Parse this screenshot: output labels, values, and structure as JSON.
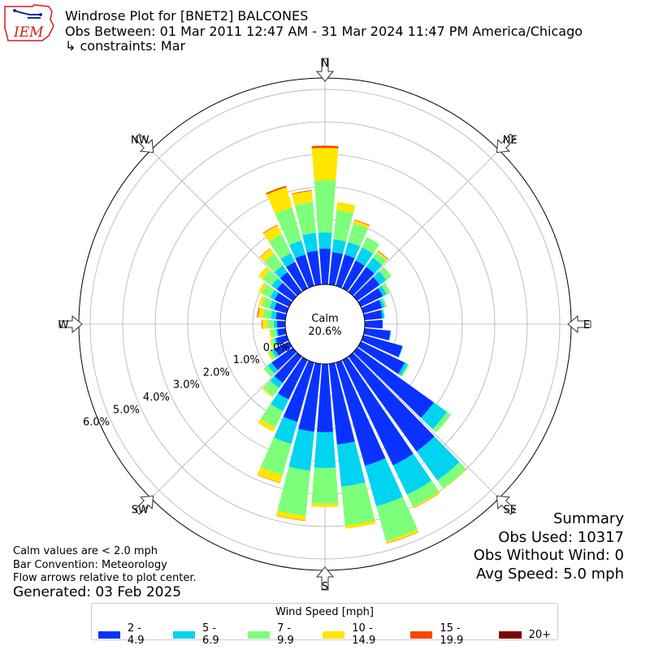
{
  "header": {
    "title": "Windrose Plot for [BNET2] BALCONES",
    "obs_between": "Obs Between: 01 Mar 2011 12:47 AM - 31 Mar 2024 11:47 PM America/Chicago",
    "constraints": "↳ constraints: Mar"
  },
  "logo": {
    "text": "IEM"
  },
  "summary": {
    "title": "Summary",
    "obs_used": "Obs Used: 10317",
    "obs_without_wind": "Obs Without Wind: 0",
    "avg_speed": "Avg Speed: 5.0 mph"
  },
  "notes": {
    "calm": "Calm values are < 2.0 mph",
    "convention": "Bar Convention: Meteorology",
    "flow": "Flow arrows relative to plot center.",
    "generated": "Generated: 03 Feb 2025"
  },
  "chart_data": {
    "type": "windrose",
    "calm_label": "Calm",
    "calm_value": "20.6%",
    "directions": [
      "N",
      "NE",
      "E",
      "SE",
      "S",
      "SW",
      "W",
      "NW"
    ],
    "radial_ticks": [
      "0.0%",
      "1.0%",
      "2.0%",
      "3.0%",
      "4.0%",
      "5.0%",
      "6.0%"
    ],
    "legend_title": "Wind Speed [mph]",
    "bins": [
      {
        "label": "2 - 4.9",
        "color": "#0a32ff"
      },
      {
        "label": "5 - 6.9",
        "color": "#00d4f0"
      },
      {
        "label": "7 - 9.9",
        "color": "#7dff7a"
      },
      {
        "label": "10 - 14.9",
        "color": "#ffe600"
      },
      {
        "label": "15 - 19.9",
        "color": "#ff4500"
      },
      {
        "label": "20+",
        "color": "#800000"
      }
    ],
    "sectors": [
      {
        "dir": 0,
        "cum": [
          1.1,
          1.6,
          3.2,
          4.2,
          4.27,
          4.27
        ]
      },
      {
        "dir": 10,
        "cum": [
          1.0,
          1.4,
          2.3,
          2.55,
          2.55,
          2.55
        ]
      },
      {
        "dir": 20,
        "cum": [
          1.0,
          1.4,
          2.0,
          2.1,
          2.12,
          2.12
        ]
      },
      {
        "dir": 30,
        "cum": [
          0.95,
          1.4,
          1.75,
          1.75,
          1.75,
          1.75
        ]
      },
      {
        "dir": 40,
        "cum": [
          0.95,
          1.3,
          1.5,
          1.55,
          1.57,
          1.57
        ]
      },
      {
        "dir": 50,
        "cum": [
          0.85,
          1.1,
          1.3,
          1.3,
          1.3,
          1.3
        ]
      },
      {
        "dir": 60,
        "cum": [
          0.75,
          0.88,
          1.0,
          1.0,
          1.0,
          1.0
        ]
      },
      {
        "dir": 70,
        "cum": [
          0.6,
          0.68,
          0.75,
          0.75,
          0.75,
          0.75
        ]
      },
      {
        "dir": 80,
        "cum": [
          0.55,
          0.62,
          0.62,
          0.62,
          0.62,
          0.62
        ]
      },
      {
        "dir": 90,
        "cum": [
          0.55,
          0.55,
          0.55,
          0.55,
          0.55,
          0.55
        ]
      },
      {
        "dir": 100,
        "cum": [
          0.8,
          0.82,
          0.82,
          0.82,
          0.82,
          0.82
        ]
      },
      {
        "dir": 110,
        "cum": [
          1.25,
          1.27,
          1.27,
          1.27,
          1.27,
          1.27
        ]
      },
      {
        "dir": 120,
        "cum": [
          1.5,
          1.6,
          1.65,
          1.65,
          1.65,
          1.65
        ]
      },
      {
        "dir": 130,
        "cum": [
          2.9,
          3.4,
          3.55,
          3.55,
          3.55,
          3.55
        ]
      },
      {
        "dir": 140,
        "cum": [
          3.6,
          4.7,
          5.0,
          5.02,
          5.02,
          5.02
        ]
      },
      {
        "dir": 150,
        "cum": [
          3.6,
          4.6,
          5.0,
          5.05,
          5.06,
          5.06
        ]
      },
      {
        "dir": 160,
        "cum": [
          3.3,
          4.6,
          5.7,
          5.78,
          5.79,
          5.79
        ]
      },
      {
        "dir": 170,
        "cum": [
          2.5,
          3.8,
          5.0,
          5.1,
          5.1,
          5.1
        ]
      },
      {
        "dir": 180,
        "cum": [
          2.1,
          3.2,
          4.3,
          4.4,
          4.4,
          4.4
        ]
      },
      {
        "dir": 190,
        "cum": [
          2.1,
          3.3,
          4.7,
          4.85,
          4.86,
          4.86
        ]
      },
      {
        "dir": 200,
        "cum": [
          1.9,
          2.6,
          3.6,
          3.85,
          3.86,
          3.86
        ]
      },
      {
        "dir": 210,
        "cum": [
          1.35,
          1.75,
          2.3,
          2.45,
          2.45,
          2.45
        ]
      },
      {
        "dir": 220,
        "cum": [
          1.0,
          1.2,
          1.5,
          1.55,
          1.55,
          1.55
        ]
      },
      {
        "dir": 230,
        "cum": [
          0.8,
          0.95,
          1.1,
          1.1,
          1.1,
          1.1
        ]
      },
      {
        "dir": 240,
        "cum": [
          0.5,
          0.6,
          0.7,
          0.75,
          0.75,
          0.75
        ]
      },
      {
        "dir": 250,
        "cum": [
          0.35,
          0.4,
          0.5,
          0.55,
          0.55,
          0.55
        ]
      },
      {
        "dir": 260,
        "cum": [
          0.25,
          0.3,
          0.45,
          0.5,
          0.5,
          0.5
        ]
      },
      {
        "dir": 270,
        "cum": [
          0.25,
          0.35,
          0.55,
          0.7,
          0.72,
          0.72
        ]
      },
      {
        "dir": 280,
        "cum": [
          0.3,
          0.45,
          0.7,
          0.85,
          0.88,
          0.88
        ]
      },
      {
        "dir": 290,
        "cum": [
          0.4,
          0.55,
          0.8,
          0.9,
          0.9,
          0.9
        ]
      },
      {
        "dir": 300,
        "cum": [
          0.5,
          0.65,
          0.95,
          1.05,
          1.05,
          1.05
        ]
      },
      {
        "dir": 310,
        "cum": [
          0.6,
          0.8,
          1.15,
          1.3,
          1.3,
          1.3
        ]
      },
      {
        "dir": 320,
        "cum": [
          0.75,
          1.0,
          1.45,
          1.65,
          1.66,
          1.66
        ]
      },
      {
        "dir": 330,
        "cum": [
          0.9,
          1.2,
          1.85,
          2.15,
          2.17,
          2.17
        ]
      },
      {
        "dir": 340,
        "cum": [
          1.0,
          1.45,
          2.5,
          3.15,
          3.2,
          3.2
        ]
      },
      {
        "dir": 350,
        "cum": [
          1.05,
          1.6,
          2.55,
          2.9,
          2.92,
          2.92
        ]
      }
    ]
  }
}
